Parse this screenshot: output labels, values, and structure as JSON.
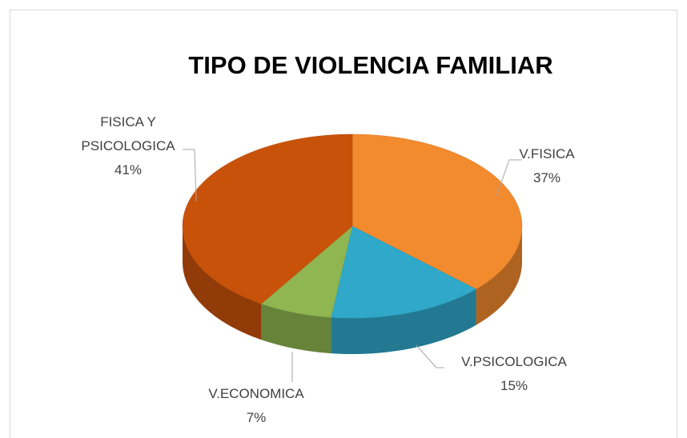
{
  "chart_data": {
    "type": "pie",
    "title": "TIPO DE VIOLENCIA FAMILIAR",
    "categories": [
      "V.FISICA",
      "V.PSICOLOGICA",
      "V.ECONOMICA",
      "FISICA Y PSICOLOGICA"
    ],
    "values": [
      37,
      15,
      7,
      41
    ],
    "value_labels": [
      "37%",
      "15%",
      "7%",
      "41%"
    ],
    "colors": [
      "#f28a2e",
      "#2fa8c9",
      "#8fb650",
      "#c9520b"
    ]
  }
}
